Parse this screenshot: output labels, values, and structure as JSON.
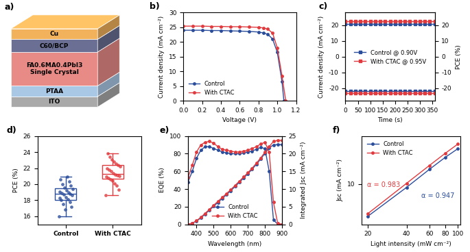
{
  "chart_data": [
    {
      "type": "diagram",
      "panel": "a)",
      "layers": [
        {
          "label": "Cu",
          "color": "#f2b25c"
        },
        {
          "label": "C60/BCP",
          "color": "#6a6f93"
        },
        {
          "label": "FA0.6MA0.4PbI3\nSingle Crystal",
          "color": "#e88a86"
        },
        {
          "label": "PTAA",
          "color": "#a9c8e6"
        },
        {
          "label": "ITO",
          "color": "#a9a9a9"
        }
      ]
    },
    {
      "type": "line",
      "panel": "b)",
      "x_label": "Voltage (V)",
      "y_label": "Current density (mA cm⁻²)",
      "xlim": [
        0,
        1.2
      ],
      "ylim": [
        0,
        30
      ],
      "xticks": [
        {
          "value": 0,
          "label": "0.0"
        },
        {
          "value": 0.2,
          "label": "0.2"
        },
        {
          "value": 0.4,
          "label": "0.4"
        },
        {
          "value": 0.6,
          "label": "0.6"
        },
        {
          "value": 0.8,
          "label": "0.8"
        },
        {
          "value": 1.0,
          "label": "1.0"
        },
        {
          "value": 1.2,
          "label": "1.2"
        }
      ],
      "yticks": [
        0,
        5,
        10,
        15,
        20,
        25,
        30
      ],
      "legend": "lower left",
      "marker": "o",
      "series": [
        {
          "name": "Control",
          "color": "#2a4d9b",
          "x": [
            0,
            0.1,
            0.2,
            0.3,
            0.4,
            0.5,
            0.6,
            0.7,
            0.8,
            0.85,
            0.9,
            0.95,
            1.0,
            1.05,
            1.07
          ],
          "values": [
            24.0,
            24.0,
            24.0,
            23.9,
            23.9,
            23.8,
            23.7,
            23.6,
            23.4,
            23.1,
            22.6,
            21.0,
            16.5,
            6.5,
            0
          ]
        },
        {
          "name": "With CTAC",
          "color": "#e03a3e",
          "x": [
            0,
            0.1,
            0.2,
            0.3,
            0.4,
            0.5,
            0.6,
            0.7,
            0.8,
            0.85,
            0.9,
            0.95,
            1.0,
            1.05,
            1.09
          ],
          "values": [
            25.4,
            25.4,
            25.4,
            25.3,
            25.3,
            25.2,
            25.2,
            25.1,
            25.0,
            24.8,
            24.4,
            23.0,
            18.0,
            8.5,
            0
          ]
        }
      ]
    },
    {
      "type": "line",
      "panel": "c)",
      "x_label": "Time (s)",
      "y_label": "Current density (mA cm⁻²)",
      "y2_label": "PCE (%)",
      "xlim": [
        0,
        360
      ],
      "ylim": [
        -28,
        28
      ],
      "y2lim": [
        -28,
        28
      ],
      "xticks": [
        0,
        50,
        100,
        150,
        200,
        250,
        300,
        350
      ],
      "yticks": [
        -20,
        -10,
        0,
        10,
        20
      ],
      "y2ticks": [
        -20,
        -10,
        0,
        10,
        20
      ],
      "legend": "center",
      "marker": "s",
      "x": [
        0,
        20,
        40,
        60,
        80,
        100,
        120,
        140,
        160,
        180,
        200,
        220,
        240,
        260,
        280,
        300,
        320,
        340,
        360
      ],
      "series": [
        {
          "name": "Control @ 0.90V",
          "color": "#2a4d9b",
          "values": [
            -21.8,
            -21.8,
            -21.8,
            -21.8,
            -21.8,
            -21.8,
            -21.8,
            -21.8,
            -21.8,
            -21.8,
            -21.8,
            -21.8,
            -21.8,
            -21.8,
            -21.8,
            -21.8,
            -21.8,
            -21.8,
            -21.8
          ]
        },
        {
          "name": "With CTAC @ 0.95V",
          "color": "#e03a3e",
          "values": [
            -23.0,
            -23.0,
            -23.0,
            -23.0,
            -23.0,
            -23.0,
            -23.0,
            -23.0,
            -23.0,
            -23.0,
            -23.0,
            -23.0,
            -23.0,
            -23.0,
            -23.0,
            -23.0,
            -23.0,
            -23.0,
            -23.0
          ]
        },
        {
          "name": "Control @ 0.90V",
          "color": "#2a4d9b",
          "axis": "y2",
          "values": [
            20.6,
            20.6,
            20.6,
            20.6,
            20.6,
            20.6,
            20.6,
            20.6,
            20.6,
            20.6,
            20.6,
            20.6,
            20.6,
            20.6,
            20.6,
            20.6,
            20.6,
            20.6,
            20.6
          ]
        },
        {
          "name": "With CTAC @ 0.95V",
          "color": "#e03a3e",
          "axis": "y2",
          "values": [
            22.6,
            22.6,
            22.6,
            22.6,
            22.6,
            22.6,
            22.6,
            22.6,
            22.6,
            22.6,
            22.6,
            22.6,
            22.6,
            22.6,
            22.6,
            22.6,
            22.6,
            22.6,
            22.6
          ]
        }
      ]
    },
    {
      "type": "box",
      "panel": "d)",
      "y_label": "PCE (%)",
      "ylim": [
        15,
        26
      ],
      "yticks": [
        16,
        18,
        20,
        22,
        24,
        26
      ],
      "categories": [
        "Control",
        "With CTAC"
      ],
      "colors": [
        "#2a4d9b",
        "#e03a3e"
      ],
      "values": [
        [
          16.0,
          16.8,
          17.2,
          17.5,
          17.8,
          18.0,
          18.1,
          18.3,
          18.4,
          18.6,
          18.7,
          18.8,
          18.9,
          19.0,
          19.1,
          19.2,
          19.4,
          19.6,
          19.8,
          20.0,
          20.3,
          20.6,
          20.9
        ],
        [
          18.6,
          19.3,
          19.8,
          20.1,
          20.4,
          20.6,
          20.8,
          20.9,
          21.0,
          21.1,
          21.2,
          21.4,
          21.6,
          21.8,
          22.0,
          22.2,
          22.4,
          22.6,
          22.8,
          23.1,
          23.4,
          23.8
        ]
      ]
    },
    {
      "type": "line",
      "panel": "e)",
      "x_label": "Wavelength (nm)",
      "y_label": "EQE (%)",
      "y2_label": "Integrated Jsc (mA cm⁻²)",
      "xlim": [
        350,
        900
      ],
      "ylim": [
        0,
        100
      ],
      "y2lim": [
        0,
        25
      ],
      "xticks": [
        400,
        500,
        600,
        700,
        800,
        900
      ],
      "yticks": [
        0,
        20,
        40,
        60,
        80,
        100
      ],
      "y2ticks": [
        0,
        5,
        10,
        15,
        20,
        25
      ],
      "legend": "lower center",
      "marker": "o",
      "x": [
        350,
        375,
        400,
        425,
        450,
        475,
        500,
        525,
        550,
        575,
        600,
        625,
        650,
        675,
        700,
        725,
        750,
        775,
        800,
        825,
        850,
        875,
        900
      ],
      "series": [
        {
          "name": "Control",
          "color": "#2a4d9b",
          "values": [
            48,
            60,
            75,
            84,
            88,
            88,
            86,
            84,
            82,
            81,
            80,
            80,
            80,
            81,
            82,
            83,
            85,
            87,
            86,
            60,
            5,
            0,
            0
          ]
        },
        {
          "name": "With CTAC",
          "color": "#e03a3e",
          "values": [
            53,
            67,
            82,
            90,
            93,
            94,
            92,
            88,
            85,
            84,
            83,
            82,
            82,
            83,
            84,
            86,
            88,
            91,
            93,
            82,
            25,
            1,
            0
          ]
        },
        {
          "name": "Control",
          "color": "#2a4d9b",
          "axis": "y2",
          "values": [
            0,
            0.3,
            0.9,
            1.8,
            2.9,
            4.0,
            5.1,
            6.2,
            7.3,
            8.4,
            9.5,
            10.7,
            11.9,
            13.1,
            14.3,
            15.6,
            17.0,
            18.5,
            20.1,
            21.7,
            22.5,
            22.6,
            22.6
          ]
        },
        {
          "name": "With CTAC",
          "color": "#e03a3e",
          "axis": "y2",
          "values": [
            0,
            0.3,
            1.0,
            2.0,
            3.1,
            4.2,
            5.4,
            6.5,
            7.6,
            8.7,
            9.8,
            11.0,
            12.2,
            13.4,
            14.6,
            15.9,
            17.3,
            18.8,
            20.4,
            22.0,
            23.5,
            23.8,
            23.8
          ]
        }
      ]
    },
    {
      "type": "scatter",
      "panel": "f)",
      "x_label": "Light intensity (mW cm⁻²)",
      "y_label": "Jsc (mA cm⁻²)",
      "log": true,
      "xlim": [
        18,
        105
      ],
      "ylim": [
        4,
        30
      ],
      "xticks": [
        20,
        40,
        60,
        80,
        100
      ],
      "yticks": [
        10
      ],
      "legend": "upper left",
      "marker": "o",
      "x": [
        20,
        40,
        60,
        80,
        100
      ],
      "series": [
        {
          "name": "Control",
          "color": "#2a4d9b",
          "values": [
            4.8,
            9.3,
            14.0,
            18.5,
            22.5
          ],
          "annotation": "α = 0.947"
        },
        {
          "name": "With CTAC",
          "color": "#e03a3e",
          "values": [
            5.1,
            10.2,
            15.3,
            20.3,
            25.0
          ],
          "annotation": "α = 0.983"
        }
      ]
    }
  ]
}
